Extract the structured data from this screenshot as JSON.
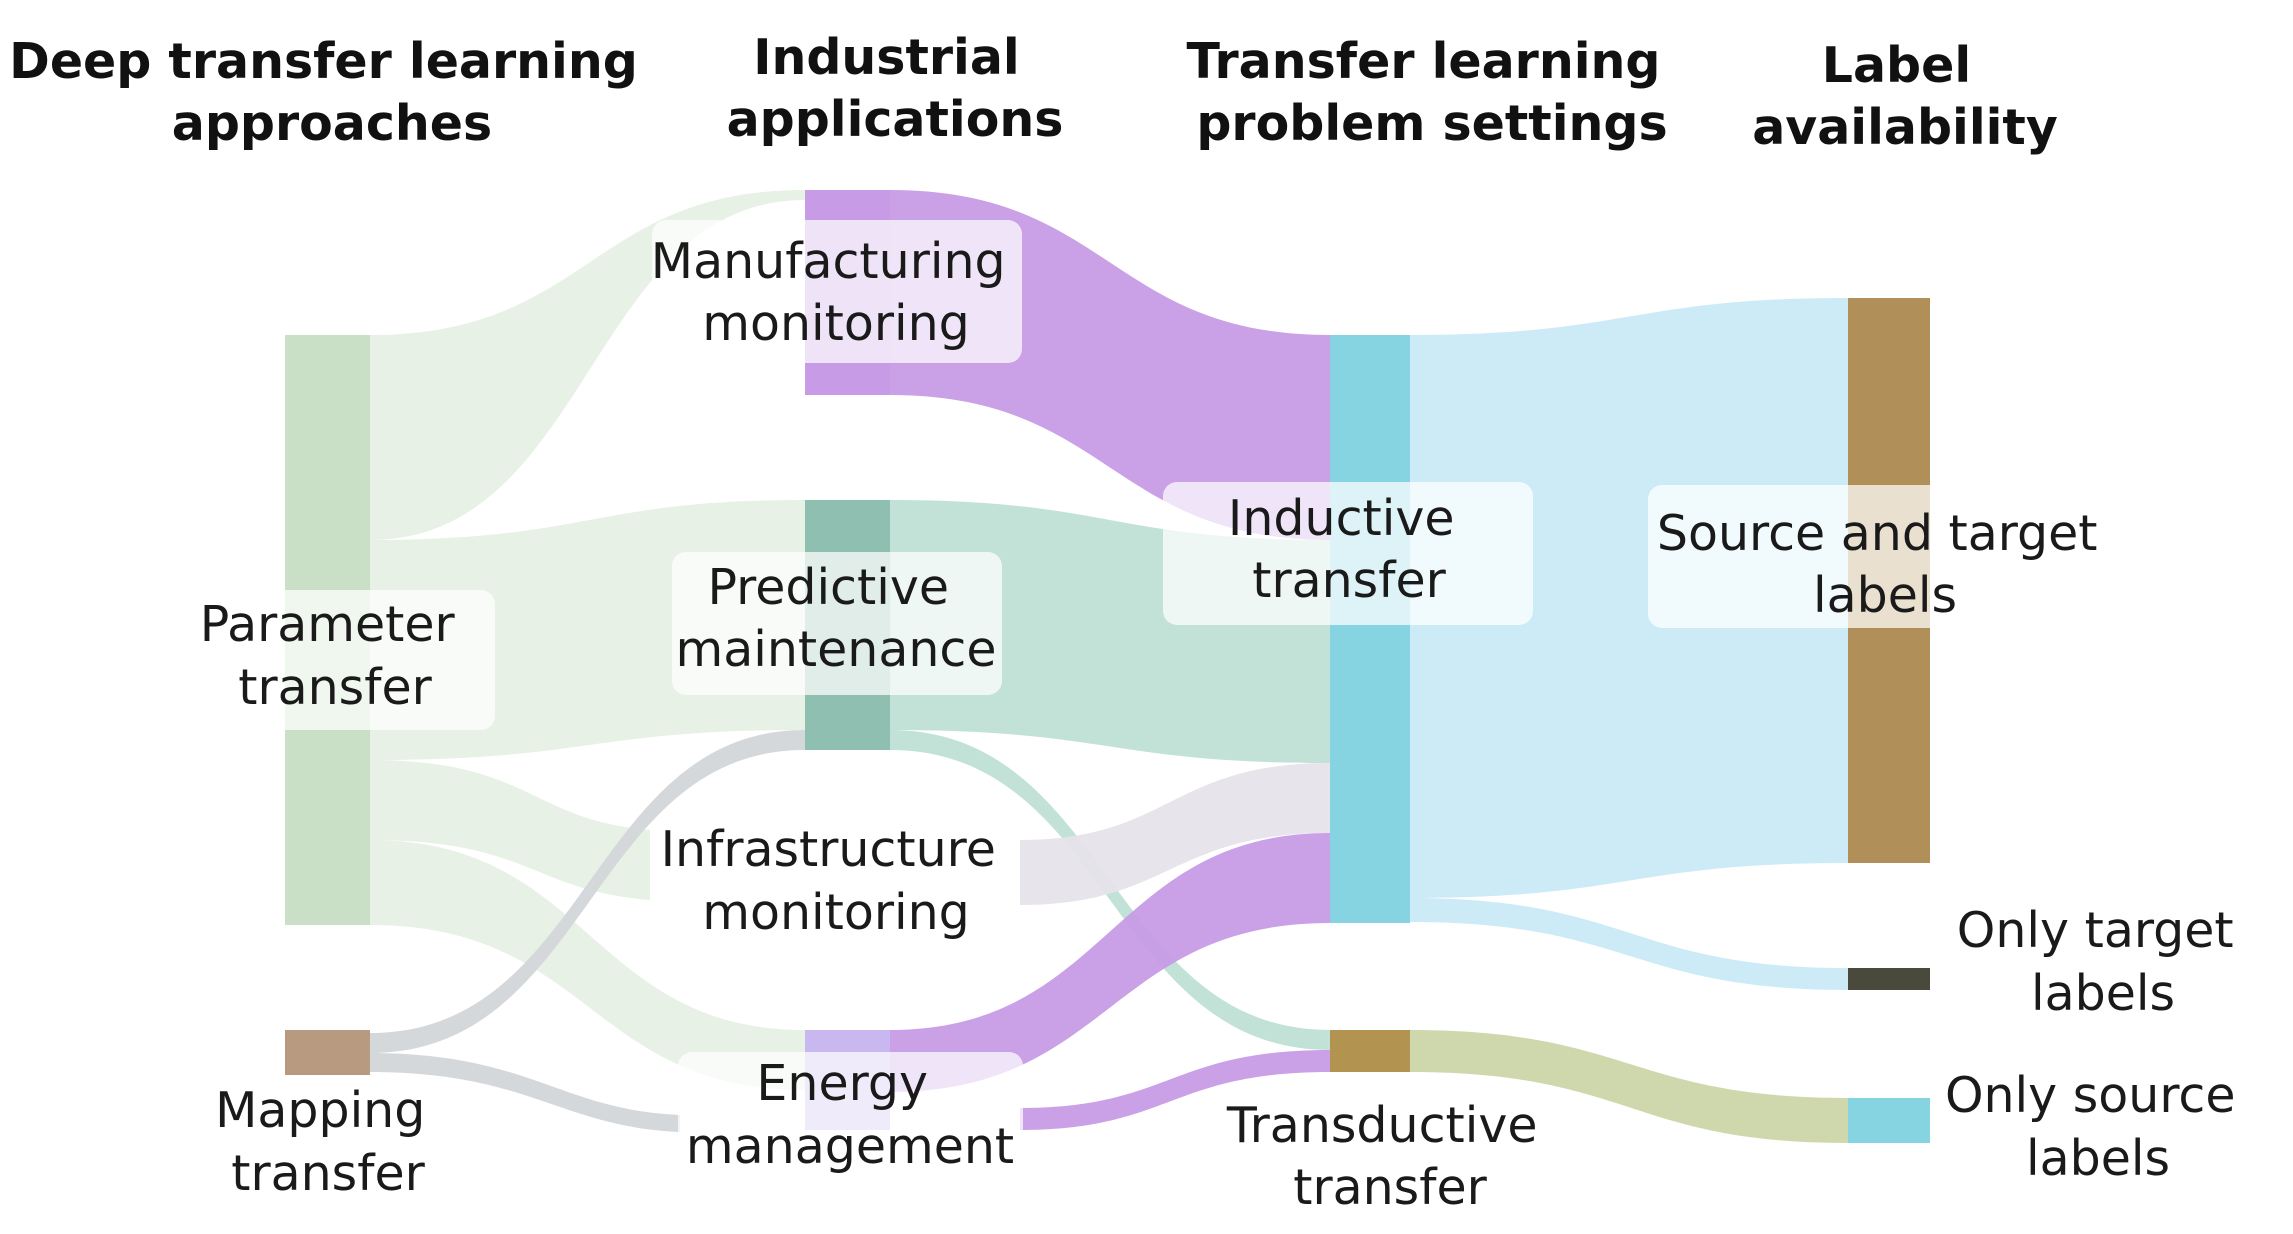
{
  "headers": {
    "approaches": [
      "Deep transfer learning",
      "approaches"
    ],
    "applications": [
      "Industrial",
      "applications"
    ],
    "settings": [
      "Transfer learning",
      "problem settings"
    ],
    "labels": [
      "Label",
      "availability"
    ]
  },
  "nodes": {
    "parameter_transfer": {
      "label": [
        "Parameter",
        "transfer"
      ],
      "color": "#c9e0c6"
    },
    "mapping_transfer": {
      "label": [
        "Mapping",
        "transfer"
      ],
      "color": "#b89a80"
    },
    "manufacturing_monitoring": {
      "label": [
        "Manufacturing",
        "monitoring"
      ],
      "color": "#c79be6"
    },
    "predictive_maintenance": {
      "label": [
        "Predictive",
        "maintenance"
      ],
      "color": "#8fbfb0"
    },
    "infrastructure_monitoring": {
      "label": [
        "Infrastructure",
        "monitoring"
      ],
      "color": "#d9d5de"
    },
    "energy_management": {
      "label": [
        "Energy",
        "management"
      ],
      "color": "#c9b8f0"
    },
    "inductive_transfer": {
      "label": [
        "Inductive",
        "transfer"
      ],
      "color": "#86d4e2"
    },
    "transductive_transfer": {
      "label": [
        "Transductive",
        "transfer"
      ],
      "color": "#b29450"
    },
    "source_and_target_labels": {
      "label": [
        "Source and target",
        "labels"
      ],
      "color": "#b09058"
    },
    "only_target_labels": {
      "label": [
        "Only target",
        "labels"
      ],
      "color": "#4a4a3c"
    },
    "only_source_labels": {
      "label": [
        "Only source",
        "labels"
      ],
      "color": "#86d4e2"
    }
  },
  "links": [
    {
      "from": "parameter_transfer",
      "to": "manufacturing_monitoring",
      "color": "#e4efe1"
    },
    {
      "from": "parameter_transfer",
      "to": "predictive_maintenance",
      "color": "#e4efe1"
    },
    {
      "from": "parameter_transfer",
      "to": "infrastructure_monitoring",
      "color": "#e4efe1"
    },
    {
      "from": "parameter_transfer",
      "to": "energy_management",
      "color": "#e4efe1"
    },
    {
      "from": "mapping_transfer",
      "to": "predictive_maintenance",
      "color": "#d3d6d9"
    },
    {
      "from": "mapping_transfer",
      "to": "energy_management",
      "color": "#d3d6d9"
    },
    {
      "from": "manufacturing_monitoring",
      "to": "inductive_transfer",
      "color": "#c79be6"
    },
    {
      "from": "predictive_maintenance",
      "to": "inductive_transfer",
      "color": "#bfe0d5"
    },
    {
      "from": "predictive_maintenance",
      "to": "transductive_transfer",
      "color": "#bfe0d5"
    },
    {
      "from": "infrastructure_monitoring",
      "to": "inductive_transfer",
      "color": "#e6e3ea"
    },
    {
      "from": "energy_management",
      "to": "inductive_transfer",
      "color": "#c79be6"
    },
    {
      "from": "energy_management",
      "to": "transductive_transfer",
      "color": "#c79be6"
    },
    {
      "from": "inductive_transfer",
      "to": "source_and_target_labels",
      "color": "#c9eaf5"
    },
    {
      "from": "inductive_transfer",
      "to": "only_target_labels",
      "color": "#c9eaf5"
    },
    {
      "from": "transductive_transfer",
      "to": "only_source_labels",
      "color": "#ccd6a8"
    }
  ]
}
